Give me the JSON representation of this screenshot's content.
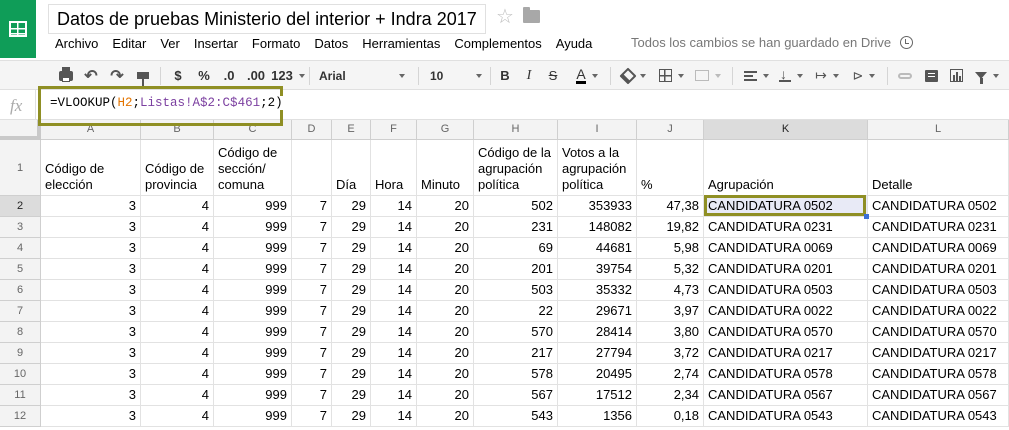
{
  "app": {
    "title": "Datos de pruebas Ministerio del interior + Indra 2017"
  },
  "menu": [
    "Archivo",
    "Editar",
    "Ver",
    "Insertar",
    "Formato",
    "Datos",
    "Herramientas",
    "Complementos",
    "Ayuda"
  ],
  "save_status": "Todos los cambios se han guardado en Drive",
  "toolbar": {
    "currency": "$",
    "percent": "%",
    "dec_less": ".0",
    "dec_more": ".00",
    "more_formats": "123",
    "font": "Arial",
    "font_size": "10",
    "bold": "B",
    "italic": "I",
    "strike": "S",
    "text_color": "A"
  },
  "formula": {
    "prefix": "=VLOOKUP(",
    "ref": "H2",
    "sep1": ";",
    "range": "Listas!A$2:C$461",
    "suffix": ";2)",
    "fx": "fx"
  },
  "columns": [
    "A",
    "B",
    "C",
    "D",
    "E",
    "F",
    "G",
    "H",
    "I",
    "J",
    "K",
    "L"
  ],
  "headers": {
    "A": "Código de elección",
    "B": "Código de provincia",
    "C": "Código de sección/ comuna",
    "D": "",
    "E": "Día",
    "F": "Hora",
    "G": "Minuto",
    "H": "Código de la agrupación política",
    "I": "Votos a la agrupación política",
    "J": "%",
    "K": "Agrupación",
    "L": "Detalle"
  },
  "rows": [
    {
      "n": "2",
      "A": "3",
      "B": "4",
      "C": "999",
      "D": "7",
      "E": "29",
      "F": "14",
      "G": "20",
      "H": "502",
      "I": "353933",
      "J": "47,38",
      "K": "CANDIDATURA 0502",
      "L": "CANDIDATURA 0502"
    },
    {
      "n": "3",
      "A": "3",
      "B": "4",
      "C": "999",
      "D": "7",
      "E": "29",
      "F": "14",
      "G": "20",
      "H": "231",
      "I": "148082",
      "J": "19,82",
      "K": "CANDIDATURA 0231",
      "L": "CANDIDATURA 0231"
    },
    {
      "n": "4",
      "A": "3",
      "B": "4",
      "C": "999",
      "D": "7",
      "E": "29",
      "F": "14",
      "G": "20",
      "H": "69",
      "I": "44681",
      "J": "5,98",
      "K": "CANDIDATURA 0069",
      "L": "CANDIDATURA 0069"
    },
    {
      "n": "5",
      "A": "3",
      "B": "4",
      "C": "999",
      "D": "7",
      "E": "29",
      "F": "14",
      "G": "20",
      "H": "201",
      "I": "39754",
      "J": "5,32",
      "K": "CANDIDATURA 0201",
      "L": "CANDIDATURA 0201"
    },
    {
      "n": "6",
      "A": "3",
      "B": "4",
      "C": "999",
      "D": "7",
      "E": "29",
      "F": "14",
      "G": "20",
      "H": "503",
      "I": "35332",
      "J": "4,73",
      "K": "CANDIDATURA 0503",
      "L": "CANDIDATURA 0503"
    },
    {
      "n": "7",
      "A": "3",
      "B": "4",
      "C": "999",
      "D": "7",
      "E": "29",
      "F": "14",
      "G": "20",
      "H": "22",
      "I": "29671",
      "J": "3,97",
      "K": "CANDIDATURA 0022",
      "L": "CANDIDATURA 0022"
    },
    {
      "n": "8",
      "A": "3",
      "B": "4",
      "C": "999",
      "D": "7",
      "E": "29",
      "F": "14",
      "G": "20",
      "H": "570",
      "I": "28414",
      "J": "3,80",
      "K": "CANDIDATURA 0570",
      "L": "CANDIDATURA 0570"
    },
    {
      "n": "9",
      "A": "3",
      "B": "4",
      "C": "999",
      "D": "7",
      "E": "29",
      "F": "14",
      "G": "20",
      "H": "217",
      "I": "27794",
      "J": "3,72",
      "K": "CANDIDATURA 0217",
      "L": "CANDIDATURA 0217"
    },
    {
      "n": "10",
      "A": "3",
      "B": "4",
      "C": "999",
      "D": "7",
      "E": "29",
      "F": "14",
      "G": "20",
      "H": "578",
      "I": "20495",
      "J": "2,74",
      "K": "CANDIDATURA 0578",
      "L": "CANDIDATURA 0578"
    },
    {
      "n": "11",
      "A": "3",
      "B": "4",
      "C": "999",
      "D": "7",
      "E": "29",
      "F": "14",
      "G": "20",
      "H": "567",
      "I": "17512",
      "J": "2,34",
      "K": "CANDIDATURA 0567",
      "L": "CANDIDATURA 0567"
    },
    {
      "n": "12",
      "A": "3",
      "B": "4",
      "C": "999",
      "D": "7",
      "E": "29",
      "F": "14",
      "G": "20",
      "H": "543",
      "I": "1356",
      "J": "0,18",
      "K": "CANDIDATURA 0543",
      "L": "CANDIDATURA 0543"
    }
  ],
  "selected_cell": "K2",
  "colors": {
    "brand": "#0f9d58",
    "highlight_border": "#8f8f24",
    "selection_fill": "#e8eaf6"
  }
}
